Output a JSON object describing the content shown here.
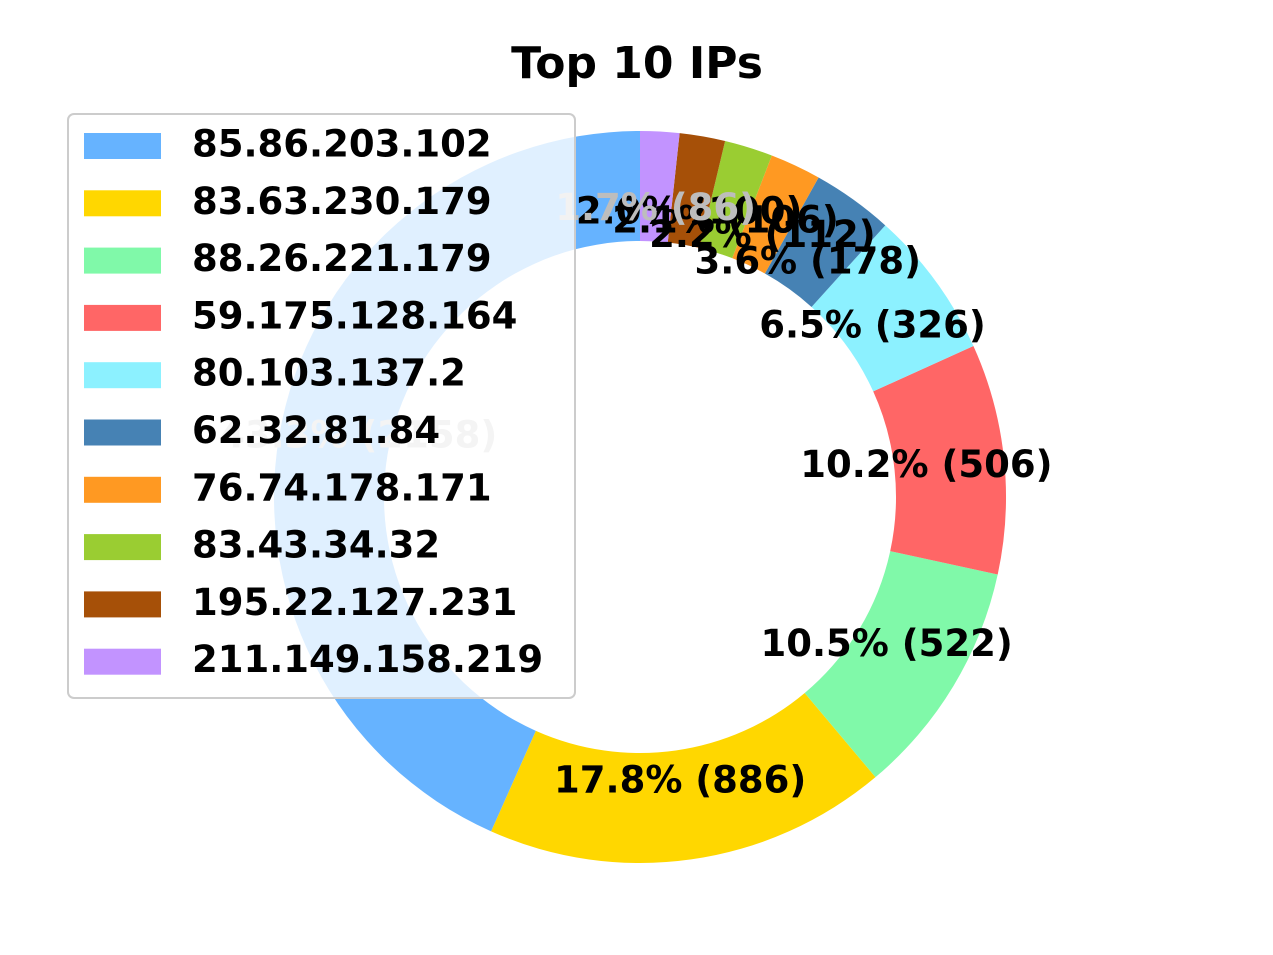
{
  "chart_data": {
    "type": "pie",
    "title": "Top 10 IPs",
    "legend_position": "top-left",
    "series": [
      {
        "name": "85.86.203.102",
        "value": 2158,
        "label": "43.3%  (2158)",
        "color": "#66b3ff"
      },
      {
        "name": "83.63.230.179",
        "value": 886,
        "label": "17.8%  (886)",
        "color": "#ffd700"
      },
      {
        "name": "88.26.221.179",
        "value": 522,
        "label": "10.5%  (522)",
        "color": "#80f9a9"
      },
      {
        "name": "59.175.128.164",
        "value": 506,
        "label": "10.2%  (506)",
        "color": "#ff6666"
      },
      {
        "name": "80.103.137.2",
        "value": 326,
        "label": "6.5%  (326)",
        "color": "#8cf1ff"
      },
      {
        "name": "62.32.81.84",
        "value": 178,
        "label": "3.6%  (178)",
        "color": "#4682b4"
      },
      {
        "name": "76.74.178.171",
        "value": 112,
        "label": "2.2%  (112)",
        "color": "#ff9922"
      },
      {
        "name": "83.43.34.32",
        "value": 106,
        "label": "2.1%  (106)",
        "color": "#9acd32"
      },
      {
        "name": "195.22.127.231",
        "value": 100,
        "label": "2.0%  (100)",
        "color": "#a65008"
      },
      {
        "name": "211.149.158.219",
        "value": 86,
        "label": "1.7%  (86)",
        "color": "#c293ff"
      }
    ]
  }
}
